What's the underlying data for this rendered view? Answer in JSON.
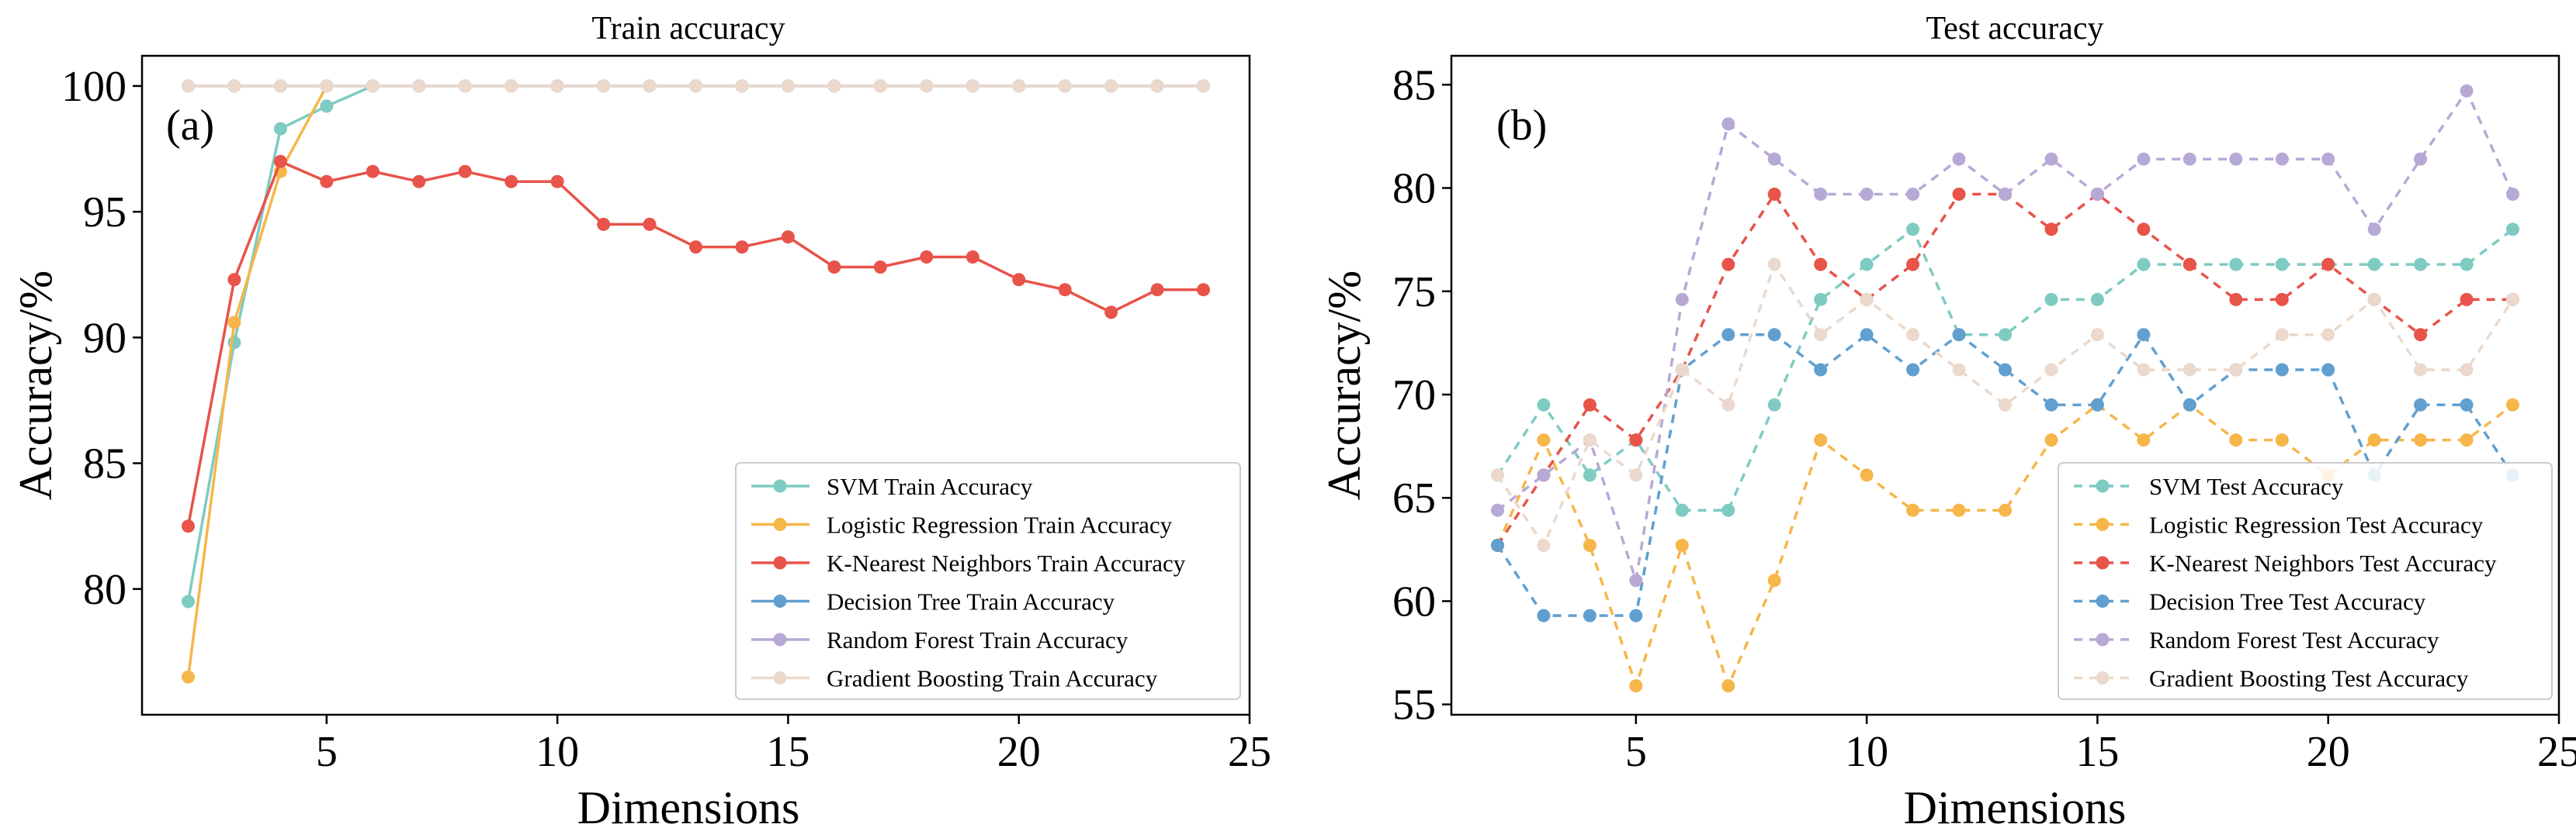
{
  "chart_data": [
    {
      "type": "line",
      "title": "Train accuracy",
      "panel_label": "(a)",
      "xlabel": "Dimensions",
      "ylabel": "Accuracy/%",
      "xlim": [
        1,
        25
      ],
      "ylim": [
        75,
        101.2
      ],
      "xticks": [
        5,
        10,
        15,
        20,
        25
      ],
      "yticks": [
        80,
        85,
        90,
        95,
        100
      ],
      "grid": false,
      "legend_position": "lower-right",
      "line_style": "solid",
      "series": [
        {
          "name": "SVM Train Accuracy",
          "color": "#7ecbc2",
          "x": [
            2,
            3,
            4,
            5,
            6
          ],
          "y": [
            79.5,
            89.8,
            98.3,
            99.2,
            100
          ]
        },
        {
          "name": "Logistic Regression Train Accuracy",
          "color": "#f6b64a",
          "x": [
            2,
            3,
            4,
            5
          ],
          "y": [
            76.5,
            90.6,
            96.6,
            100
          ]
        },
        {
          "name": "K-Nearest Neighbors Train Accuracy",
          "color": "#e8534a",
          "x": [
            2,
            3,
            4,
            5,
            6,
            7,
            8,
            9,
            10,
            11,
            12,
            13,
            14,
            15,
            16,
            17,
            18,
            19,
            20,
            21,
            22,
            23,
            24
          ],
          "y": [
            82.5,
            92.3,
            97.0,
            96.2,
            96.6,
            96.2,
            96.6,
            96.2,
            96.2,
            94.5,
            94.5,
            93.6,
            93.6,
            94.0,
            92.8,
            92.8,
            93.2,
            93.2,
            92.3,
            91.9,
            91.0,
            91.9,
            91.9
          ]
        },
        {
          "name": "Decision Tree Train Accuracy",
          "color": "#619fcf",
          "x": [
            2,
            3,
            4,
            5,
            6,
            7,
            8,
            9,
            10,
            11,
            12,
            13,
            14,
            15,
            16,
            17,
            18,
            19,
            20,
            21,
            22,
            23,
            24
          ],
          "y": [
            100,
            100,
            100,
            100,
            100,
            100,
            100,
            100,
            100,
            100,
            100,
            100,
            100,
            100,
            100,
            100,
            100,
            100,
            100,
            100,
            100,
            100,
            100
          ]
        },
        {
          "name": "Random Forest Train Accuracy",
          "color": "#b7a9d6",
          "x": [
            2,
            3,
            4,
            5,
            6,
            7,
            8,
            9,
            10,
            11,
            12,
            13,
            14,
            15,
            16,
            17,
            18,
            19,
            20,
            21,
            22,
            23,
            24
          ],
          "y": [
            100,
            100,
            100,
            100,
            100,
            100,
            100,
            100,
            100,
            100,
            100,
            100,
            100,
            100,
            100,
            100,
            100,
            100,
            100,
            100,
            100,
            100,
            100
          ]
        },
        {
          "name": "Gradient Boosting Train Accuracy",
          "color": "#ead9cc",
          "x": [
            2,
            3,
            4,
            5,
            6,
            7,
            8,
            9,
            10,
            11,
            12,
            13,
            14,
            15,
            16,
            17,
            18,
            19,
            20,
            21,
            22,
            23,
            24
          ],
          "y": [
            100,
            100,
            100,
            100,
            100,
            100,
            100,
            100,
            100,
            100,
            100,
            100,
            100,
            100,
            100,
            100,
            100,
            100,
            100,
            100,
            100,
            100,
            100
          ]
        }
      ]
    },
    {
      "type": "line",
      "title": "Test accuracy",
      "panel_label": "(b)",
      "xlabel": "Dimensions",
      "ylabel": "Accuracy/%",
      "xlim": [
        1,
        25
      ],
      "ylim": [
        54.5,
        86.4
      ],
      "xticks": [
        5,
        10,
        15,
        20,
        25
      ],
      "yticks": [
        55,
        60,
        65,
        70,
        75,
        80,
        85
      ],
      "grid": false,
      "legend_position": "lower-right",
      "line_style": "dashed",
      "series": [
        {
          "name": "SVM Test Accuracy",
          "color": "#7ecbc2",
          "x": [
            2,
            3,
            4,
            5,
            6,
            7,
            8,
            9,
            10,
            11,
            12,
            13,
            14,
            15,
            16,
            17,
            18,
            19,
            20,
            21,
            22,
            23,
            24
          ],
          "y": [
            66.1,
            69.5,
            66.1,
            67.8,
            64.4,
            64.4,
            69.5,
            74.6,
            76.3,
            78.0,
            72.9,
            72.9,
            74.6,
            74.6,
            76.3,
            76.3,
            76.3,
            76.3,
            76.3,
            76.3,
            76.3,
            76.3,
            78.0
          ]
        },
        {
          "name": "Logistic Regression Test Accuracy",
          "color": "#f6b64a",
          "x": [
            2,
            3,
            4,
            5,
            6,
            7,
            8,
            9,
            10,
            11,
            12,
            13,
            14,
            15,
            16,
            17,
            18,
            19,
            20,
            21,
            22,
            23,
            24
          ],
          "y": [
            62.7,
            67.8,
            62.7,
            55.9,
            62.7,
            55.9,
            61.0,
            67.8,
            66.1,
            64.4,
            64.4,
            64.4,
            67.8,
            69.5,
            67.8,
            69.5,
            67.8,
            67.8,
            66.1,
            67.8,
            67.8,
            67.8,
            69.5
          ]
        },
        {
          "name": "K-Nearest Neighbors Test Accuracy",
          "color": "#e8534a",
          "x": [
            2,
            3,
            4,
            5,
            6,
            7,
            8,
            9,
            10,
            11,
            12,
            13,
            14,
            15,
            16,
            17,
            18,
            19,
            20,
            21,
            22,
            23,
            24
          ],
          "y": [
            62.7,
            66.1,
            69.5,
            67.8,
            71.2,
            76.3,
            79.7,
            76.3,
            74.6,
            76.3,
            79.7,
            79.7,
            78.0,
            79.7,
            78.0,
            76.3,
            74.6,
            74.6,
            76.3,
            74.6,
            72.9,
            74.6,
            74.6
          ]
        },
        {
          "name": "Decision Tree Test Accuracy",
          "color": "#619fcf",
          "x": [
            2,
            3,
            4,
            5,
            6,
            7,
            8,
            9,
            10,
            11,
            12,
            13,
            14,
            15,
            16,
            17,
            18,
            19,
            20,
            21,
            22,
            23,
            24
          ],
          "y": [
            62.7,
            59.3,
            59.3,
            59.3,
            71.2,
            72.9,
            72.9,
            71.2,
            72.9,
            71.2,
            72.9,
            71.2,
            69.5,
            69.5,
            72.9,
            69.5,
            71.2,
            71.2,
            71.2,
            66.1,
            69.5,
            69.5,
            66.1
          ]
        },
        {
          "name": "Random Forest Test Accuracy",
          "color": "#b7a9d6",
          "x": [
            2,
            3,
            4,
            5,
            6,
            7,
            8,
            9,
            10,
            11,
            12,
            13,
            14,
            15,
            16,
            17,
            18,
            19,
            20,
            21,
            22,
            23,
            24
          ],
          "y": [
            64.4,
            66.1,
            67.8,
            61.0,
            74.6,
            83.1,
            81.4,
            79.7,
            79.7,
            79.7,
            81.4,
            79.7,
            81.4,
            79.7,
            81.4,
            81.4,
            81.4,
            81.4,
            81.4,
            78.0,
            81.4,
            84.7,
            79.7
          ]
        },
        {
          "name": "Gradient Boosting Test Accuracy",
          "color": "#ead9cc",
          "x": [
            2,
            3,
            4,
            5,
            6,
            7,
            8,
            9,
            10,
            11,
            12,
            13,
            14,
            15,
            16,
            17,
            18,
            19,
            20,
            21,
            22,
            23,
            24
          ],
          "y": [
            66.1,
            62.7,
            67.8,
            66.1,
            71.2,
            69.5,
            76.3,
            72.9,
            74.6,
            72.9,
            71.2,
            69.5,
            71.2,
            72.9,
            71.2,
            71.2,
            71.2,
            72.9,
            72.9,
            74.6,
            71.2,
            71.2,
            74.6
          ]
        }
      ]
    }
  ]
}
